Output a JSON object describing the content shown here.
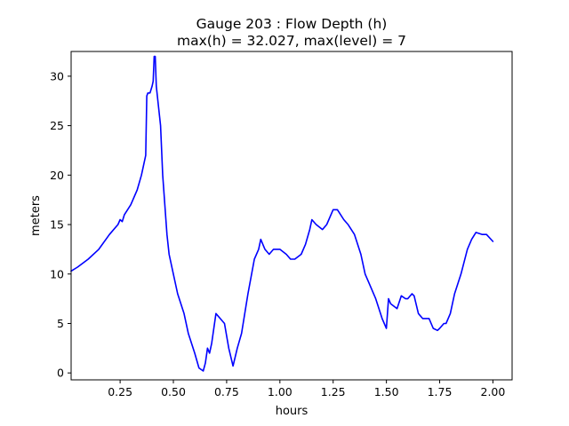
{
  "chart_data": {
    "type": "line",
    "title": "Gauge 203 : Flow Depth (h)",
    "subtitle": "max(h) =  32.027,    max(level) = 7",
    "xlabel": "hours",
    "ylabel": "meters",
    "xlim": [
      0.02,
      2.09
    ],
    "ylim": [
      -0.7,
      32.5
    ],
    "grid": false,
    "x_ticks": [
      {
        "value": 0.25,
        "label": "0.25"
      },
      {
        "value": 0.5,
        "label": "0.50"
      },
      {
        "value": 0.75,
        "label": "0.75"
      },
      {
        "value": 1.0,
        "label": "1.00"
      },
      {
        "value": 1.25,
        "label": "1.25"
      },
      {
        "value": 1.5,
        "label": "1.50"
      },
      {
        "value": 1.75,
        "label": "1.75"
      },
      {
        "value": 2.0,
        "label": "2.00"
      }
    ],
    "y_ticks": [
      {
        "value": 0,
        "label": "0"
      },
      {
        "value": 5,
        "label": "5"
      },
      {
        "value": 10,
        "label": "10"
      },
      {
        "value": 15,
        "label": "15"
      },
      {
        "value": 20,
        "label": "20"
      },
      {
        "value": 25,
        "label": "25"
      },
      {
        "value": 30,
        "label": "30"
      }
    ],
    "series": [
      {
        "color": "#0000ff",
        "x": [
          0.02,
          0.05,
          0.1,
          0.15,
          0.2,
          0.24,
          0.25,
          0.26,
          0.27,
          0.3,
          0.33,
          0.35,
          0.36,
          0.37,
          0.375,
          0.38,
          0.39,
          0.4,
          0.405,
          0.41,
          0.415,
          0.42,
          0.425,
          0.43,
          0.44,
          0.45,
          0.47,
          0.48,
          0.5,
          0.52,
          0.55,
          0.57,
          0.6,
          0.62,
          0.64,
          0.65,
          0.66,
          0.67,
          0.68,
          0.7,
          0.72,
          0.74,
          0.76,
          0.78,
          0.8,
          0.82,
          0.85,
          0.88,
          0.9,
          0.91,
          0.93,
          0.95,
          0.97,
          1.0,
          1.03,
          1.05,
          1.07,
          1.1,
          1.12,
          1.14,
          1.15,
          1.17,
          1.2,
          1.22,
          1.25,
          1.27,
          1.3,
          1.32,
          1.35,
          1.38,
          1.4,
          1.42,
          1.45,
          1.48,
          1.5,
          1.51,
          1.52,
          1.55,
          1.57,
          1.59,
          1.6,
          1.62,
          1.63,
          1.65,
          1.67,
          1.7,
          1.72,
          1.74,
          1.75,
          1.77,
          1.78,
          1.8,
          1.82,
          1.85,
          1.88,
          1.9,
          1.92,
          1.95,
          1.97,
          2.0
        ],
        "y": [
          10.3,
          10.7,
          11.5,
          12.5,
          14.0,
          15.0,
          15.5,
          15.3,
          16.0,
          17.0,
          18.5,
          20.0,
          21.0,
          22.0,
          28.0,
          28.3,
          28.3,
          29.0,
          29.5,
          32.0,
          32.0,
          29.0,
          28.0,
          27.0,
          25.0,
          20.0,
          14.0,
          12.0,
          10.0,
          8.0,
          6.0,
          4.0,
          2.0,
          0.5,
          0.2,
          1.0,
          2.5,
          2.0,
          3.0,
          6.0,
          5.5,
          5.0,
          2.5,
          0.7,
          2.5,
          4.0,
          8.0,
          11.5,
          12.5,
          13.5,
          12.5,
          12.0,
          12.5,
          12.5,
          12.0,
          11.5,
          11.5,
          12.0,
          13.0,
          14.5,
          15.5,
          15.0,
          14.5,
          15.0,
          16.5,
          16.5,
          15.5,
          15.0,
          14.0,
          12.0,
          10.0,
          9.0,
          7.5,
          5.5,
          4.5,
          7.5,
          7.0,
          6.5,
          7.8,
          7.5,
          7.5,
          8.0,
          7.8,
          6.0,
          5.5,
          5.5,
          4.5,
          4.3,
          4.5,
          5.0,
          5.0,
          6.0,
          8.0,
          10.0,
          12.5,
          13.5,
          14.2,
          14.0,
          14.0,
          13.3
        ]
      }
    ]
  }
}
